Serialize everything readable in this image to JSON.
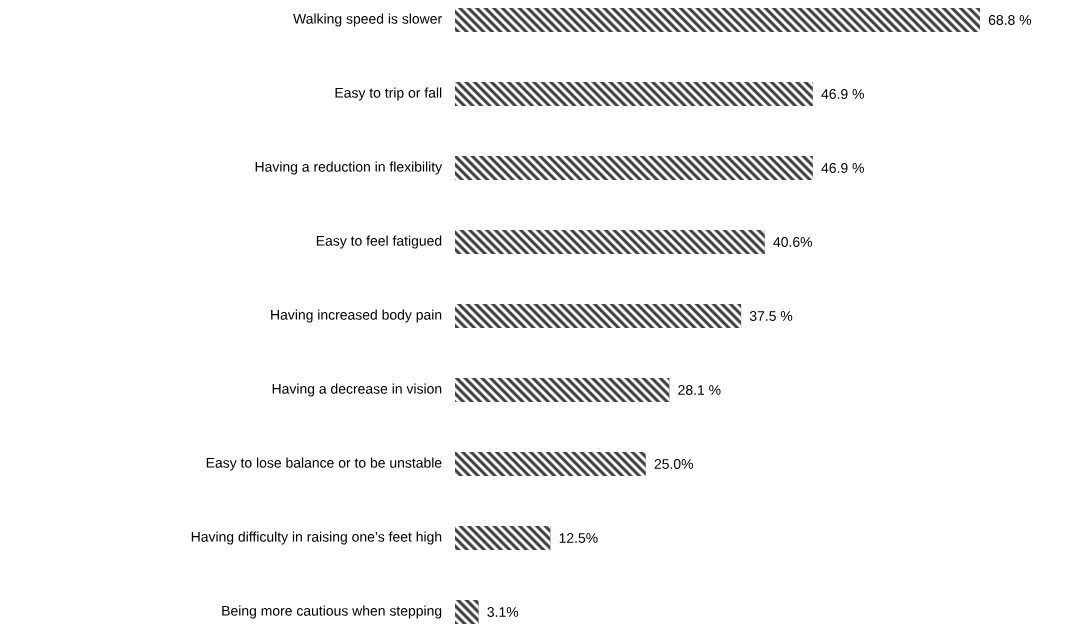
{
  "chart_data": {
    "type": "bar",
    "orientation": "horizontal",
    "categories": [
      "Walking speed is slower",
      "Easy to trip or fall",
      "Having a reduction in flexibility",
      "Easy to feel fatigued",
      "Having increased body pain",
      "Having a decrease in vision",
      "Easy to lose balance or to be unstable",
      "Having difficulty in raising one’s feet high",
      "Being more cautious when stepping"
    ],
    "values": [
      68.8,
      46.9,
      46.9,
      40.6,
      37.5,
      28.1,
      25.0,
      12.5,
      3.1
    ],
    "value_labels": [
      "68.8 %",
      "46.9 %",
      "46.9 %",
      "40.6%",
      "37.5 %",
      "28.1 %",
      "25.0%",
      "12.5%",
      "3.1%"
    ],
    "color": "#3c3c3c"
  }
}
